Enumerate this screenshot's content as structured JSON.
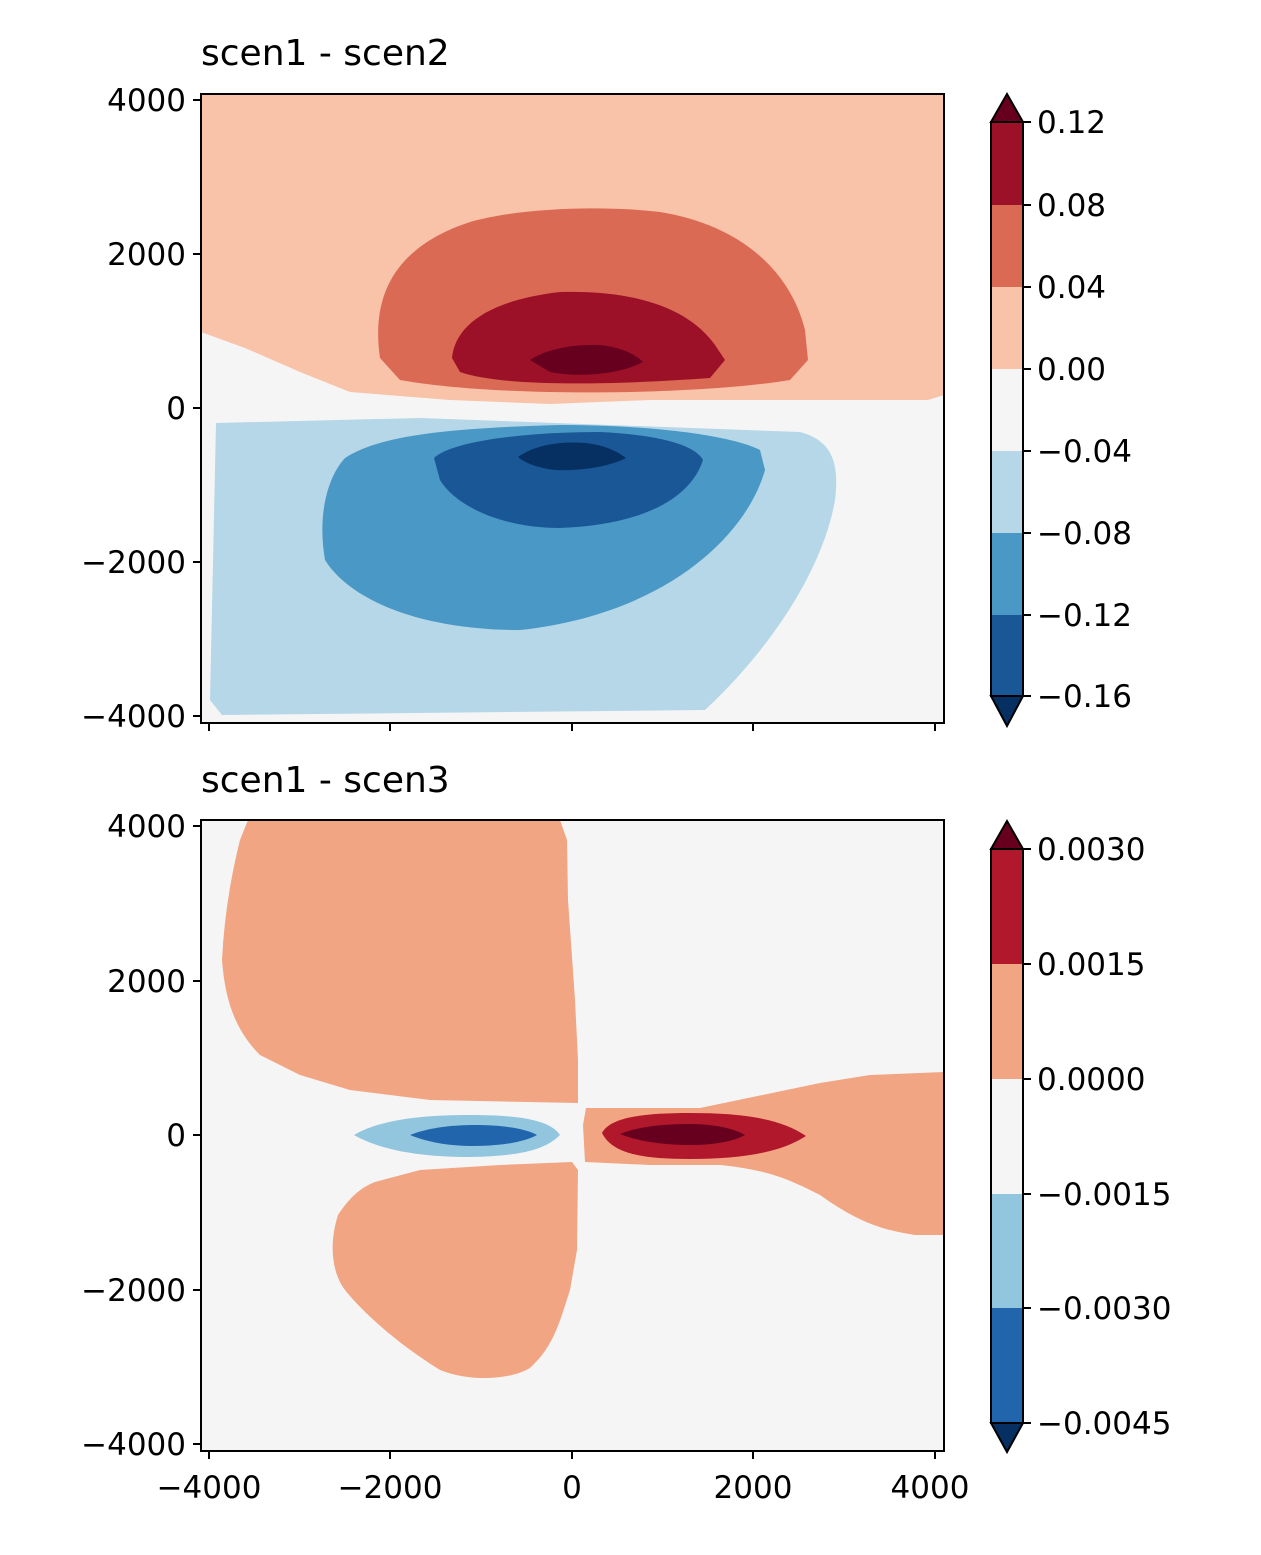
{
  "chart_data": [
    {
      "type": "contourf",
      "title": "scen1 - scen2",
      "xlim": [
        -4100,
        4100
      ],
      "ylim": [
        -4100,
        4100
      ],
      "xticks": [
        -4000,
        -2000,
        0,
        2000,
        4000
      ],
      "xtick_labels_visible": false,
      "yticks": [
        -4000,
        -2000,
        0,
        2000,
        4000
      ],
      "ytick_labels": [
        "−4000",
        "−2000",
        "0",
        "2000",
        "4000"
      ],
      "colorbar": {
        "levels": [
          -0.16,
          -0.12,
          -0.08,
          -0.04,
          0.0,
          0.04,
          0.08,
          0.12
        ],
        "tick_labels": [
          "−0.16",
          "−0.12",
          "−0.08",
          "−0.04",
          "0.00",
          "0.04",
          "0.08",
          "0.12"
        ],
        "colors": [
          "#1a5796",
          "#4a98c5",
          "#b6d7e8",
          "#f5f5f5",
          "#f8c3a8",
          "#db6a55",
          "#9c1127"
        ],
        "extend": "both",
        "under_color": "#053061",
        "over_color": "#67001f"
      },
      "contour_regions": [
        {
          "level": "0.00 to 0.04",
          "x_range": [
            -4000,
            4000
          ],
          "y_range": [
            0,
            4000
          ]
        },
        {
          "level": "0.04 to 0.08",
          "x_range": [
            -2100,
            2500
          ],
          "y_range": [
            200,
            2200
          ]
        },
        {
          "level": "0.08 to 0.12",
          "x_range": [
            -1300,
            1700
          ],
          "y_range": [
            400,
            1500
          ]
        },
        {
          "level": "> 0.12",
          "x_range": [
            -400,
            800
          ],
          "y_range": [
            500,
            800
          ]
        },
        {
          "level": "-0.04 to -0.08",
          "x_range": [
            -3900,
            2900
          ],
          "y_range": [
            -4000,
            -200
          ]
        },
        {
          "level": "-0.08 to -0.12",
          "x_range": [
            -2800,
            2100
          ],
          "y_range": [
            -2900,
            -200
          ]
        },
        {
          "level": "-0.12 to -0.16",
          "x_range": [
            -1500,
            1400
          ],
          "y_range": [
            -1500,
            -300
          ]
        },
        {
          "level": "< -0.16",
          "x_range": [
            -600,
            600
          ],
          "y_range": [
            -800,
            -400
          ]
        }
      ]
    },
    {
      "type": "contourf",
      "title": "scen1 - scen3",
      "xlim": [
        -4100,
        4100
      ],
      "ylim": [
        -4100,
        4100
      ],
      "xticks": [
        -4000,
        -2000,
        0,
        2000,
        4000
      ],
      "xtick_labels": [
        "−4000",
        "−2000",
        "0",
        "2000",
        "4000"
      ],
      "yticks": [
        -4000,
        -2000,
        0,
        2000,
        4000
      ],
      "ytick_labels": [
        "−4000",
        "−2000",
        "0",
        "2000",
        "4000"
      ],
      "colorbar": {
        "levels": [
          -0.0045,
          -0.003,
          -0.0015,
          0.0,
          0.0015,
          0.003
        ],
        "tick_labels": [
          "−0.0045",
          "−0.0030",
          "−0.0015",
          "0.0000",
          "0.0015",
          "0.0030"
        ],
        "colors": [
          "#2166ac",
          "#92c5de",
          "#f5f5f5",
          "#f1a582",
          "#b1182b"
        ],
        "extend": "both",
        "under_color": "#053061",
        "over_color": "#67001f"
      },
      "contour_regions": [
        {
          "level": "0.0000 to 0.0015",
          "x_range": [
            -3800,
            100
          ],
          "y_range": [
            400,
            4100
          ]
        },
        {
          "level": "0.0000 to 0.0015",
          "x_range": [
            -2600,
            100
          ],
          "y_range": [
            -3200,
            -400
          ]
        },
        {
          "level": "0.0000 to 0.0015",
          "x_range": [
            100,
            4100
          ],
          "y_range": [
            -1300,
            800
          ]
        },
        {
          "level": "0.0015 to 0.0030",
          "x_range": [
            300,
            2600
          ],
          "y_range": [
            -300,
            300
          ]
        },
        {
          "level": "> 0.0030",
          "x_range": [
            600,
            1900
          ],
          "y_range": [
            -100,
            100
          ]
        },
        {
          "level": "-0.0015 to -0.0030",
          "x_range": [
            -2400,
            -100
          ],
          "y_range": [
            -300,
            300
          ]
        },
        {
          "level": "-0.0030 to -0.0045",
          "x_range": [
            -1700,
            -400
          ],
          "y_range": [
            -100,
            100
          ]
        }
      ]
    }
  ]
}
